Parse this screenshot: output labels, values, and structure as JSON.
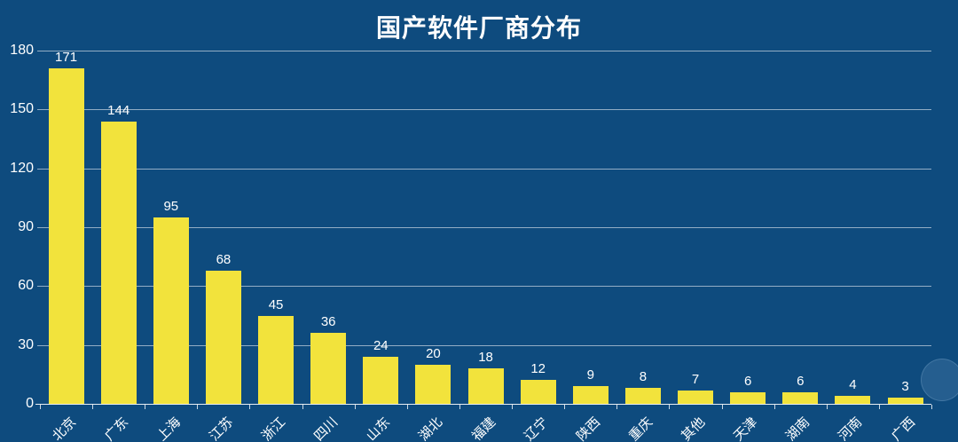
{
  "title": "国产软件厂商分布",
  "chart_data": {
    "type": "bar",
    "title": "国产软件厂商分布",
    "categories": [
      "北京",
      "广东",
      "上海",
      "江苏",
      "浙江",
      "四川",
      "山东",
      "湖北",
      "福建",
      "辽宁",
      "陕西",
      "重庆",
      "其他",
      "天津",
      "湖南",
      "河南",
      "广西"
    ],
    "values": [
      171,
      144,
      95,
      68,
      45,
      36,
      24,
      20,
      18,
      12,
      9,
      8,
      7,
      6,
      6,
      4,
      3
    ],
    "xlabel": "",
    "ylabel": "",
    "ylim": [
      0,
      180
    ],
    "yticks": [
      0,
      30,
      60,
      90,
      120,
      150,
      180
    ],
    "grid": true,
    "legend": false,
    "data_labels": true,
    "x_label_rotation": 45,
    "colors": {
      "background": "#0E4B7E",
      "bar": "#F2E33C",
      "text": "#FFFFFF",
      "gridline": "rgba(255,255,255,0.55)",
      "axis": "rgba(255,255,255,0.9)"
    }
  }
}
